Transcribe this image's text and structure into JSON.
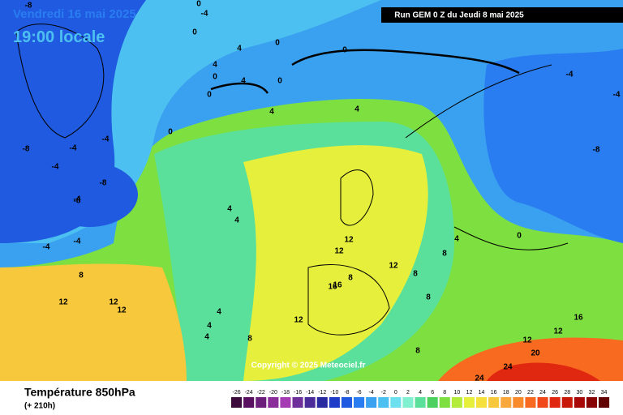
{
  "valid_time": "Vendredi 16 mai 2025",
  "local_time": "19:00 locale",
  "run": "Run GEM 0 Z du Jeudi 8 mai 2025",
  "copyright": "Copyright © 2025 Meteociel.fr",
  "footer": {
    "title": "Température 850hPa",
    "subtitle": "(+ 210h)"
  },
  "contour_labels": [
    -8,
    0,
    -4,
    0,
    4,
    4,
    0,
    4,
    0,
    0,
    0,
    0,
    -4,
    4,
    4,
    0,
    -4,
    -4,
    -8,
    -4,
    -8,
    -8,
    -4,
    -4,
    -8,
    4,
    4,
    -4,
    8,
    12,
    12,
    4,
    4,
    4,
    8,
    12,
    12,
    12,
    16,
    16,
    12,
    8,
    8,
    8,
    8,
    4,
    0,
    -4,
    12,
    12,
    16,
    20,
    24,
    24,
    8,
    12
  ],
  "legend": {
    "values": [
      -26,
      -24,
      -22,
      -20,
      -18,
      -16,
      -14,
      -12,
      -10,
      -8,
      -6,
      -4,
      -2,
      0,
      2,
      4,
      6,
      8,
      10,
      12,
      14,
      16,
      18,
      20,
      22,
      24,
      26,
      28,
      30,
      32,
      34
    ],
    "colors": [
      "#3d0a3c",
      "#5a1060",
      "#6b1f7a",
      "#8a2c9a",
      "#a63cb4",
      "#6e2f9a",
      "#4b2b9a",
      "#2a2aa0",
      "#1e3cc8",
      "#1f5ae0",
      "#2a7df0",
      "#3aa0f0",
      "#4cc0f0",
      "#6de0f0",
      "#80f0d0",
      "#5ae09a",
      "#4cd060",
      "#7ee040",
      "#b4ec3c",
      "#e6f03c",
      "#f6e03c",
      "#f8c83c",
      "#f8a83c",
      "#f88a2c",
      "#f86a20",
      "#f04818",
      "#e02810",
      "#c81808",
      "#a80808",
      "#880404",
      "#600000"
    ]
  }
}
